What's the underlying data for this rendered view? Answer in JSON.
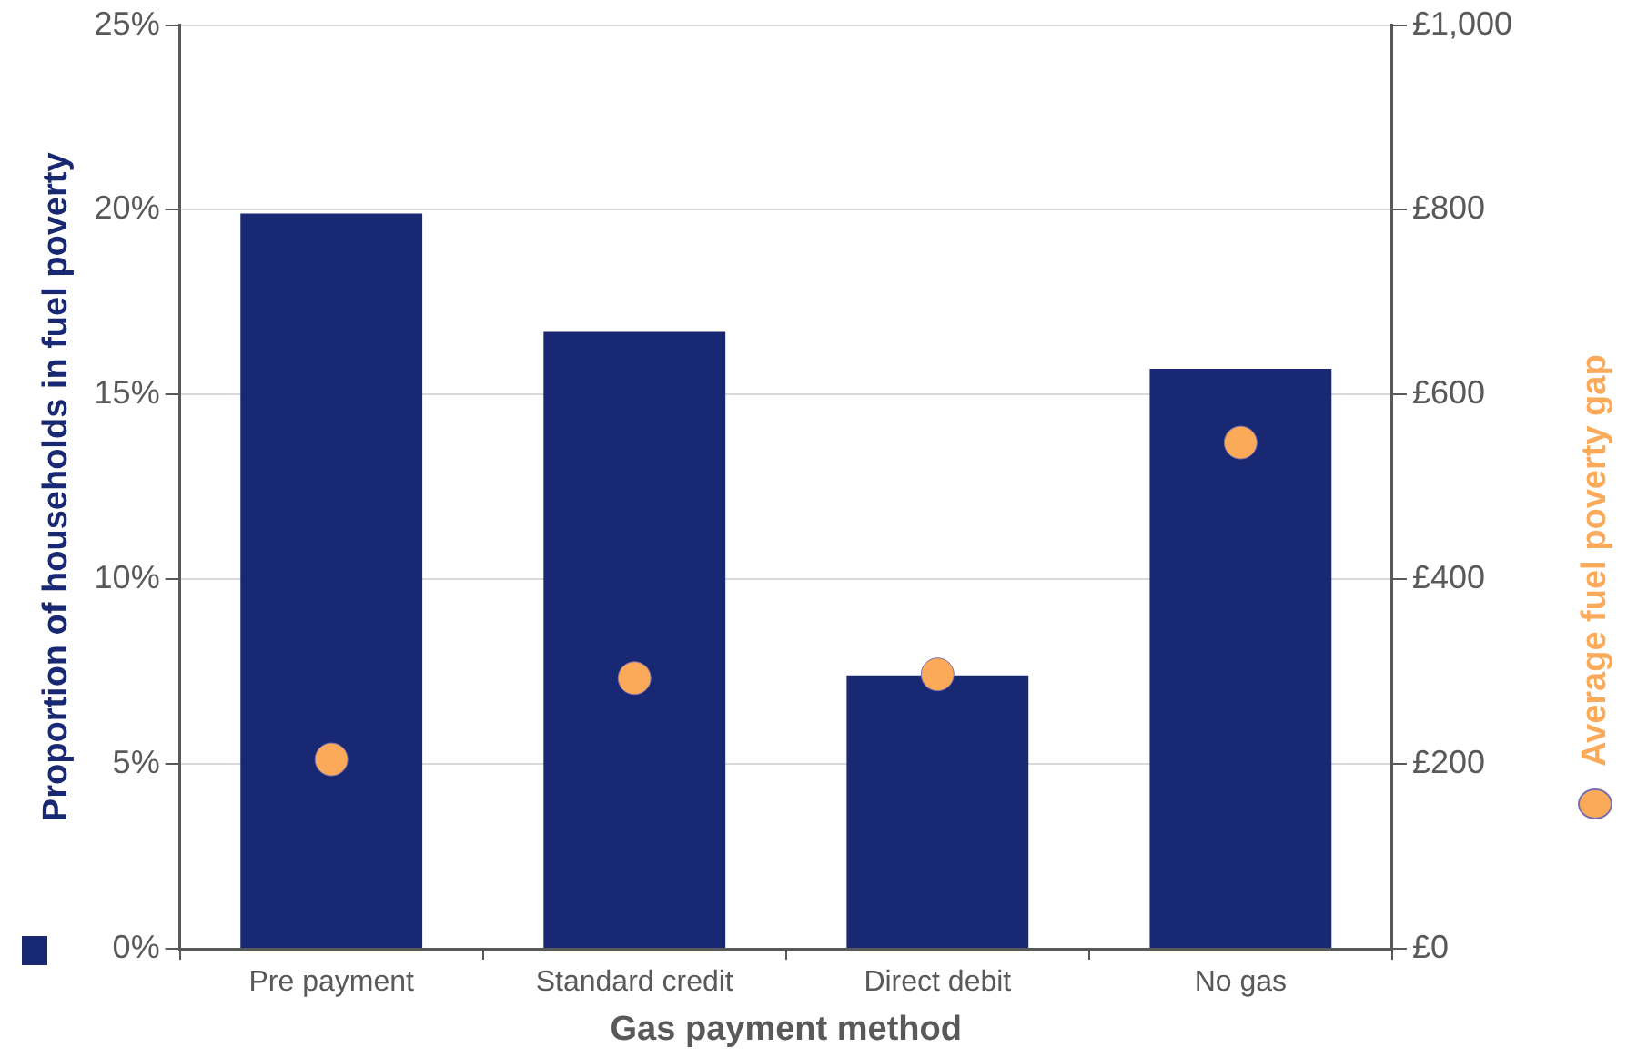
{
  "chart_data": {
    "type": "bar",
    "xlabel": "Gas payment method",
    "ylabel": "Proportion of households in fuel poverty",
    "y2label": "Average fuel poverty gap",
    "categories": [
      "Pre payment",
      "Standard credit",
      "Direct debit",
      "No gas"
    ],
    "series": [
      {
        "color": "#182872",
        "values": [
          19.9,
          16.7,
          7.4,
          15.7
        ]
      },
      {
        "type": "scatter",
        "axis": "y2",
        "color": "#fbaa5a",
        "x": [
          "Pre payment",
          "Standard credit",
          "Direct debit",
          "No gas"
        ],
        "values": [
          205,
          293,
          297,
          548
        ]
      }
    ],
    "ylim": [
      0,
      25
    ],
    "yticks": [
      {
        "value": 0,
        "label": "0%"
      },
      {
        "value": 5,
        "label": "5%"
      },
      {
        "value": 10,
        "label": "10%"
      },
      {
        "value": 15,
        "label": "15%"
      },
      {
        "value": 20,
        "label": "20%"
      },
      {
        "value": 25,
        "label": "25%"
      }
    ],
    "y2lim": [
      0,
      1000
    ],
    "y2ticks": [
      {
        "value": 0,
        "label": "£0"
      },
      {
        "value": 200,
        "label": "£200"
      },
      {
        "value": 400,
        "label": "£400"
      },
      {
        "value": 600,
        "label": "£600"
      },
      {
        "value": 800,
        "label": "£800"
      },
      {
        "value": 1000,
        "label": "£1,000"
      }
    ],
    "grid": "y",
    "marker": "circle",
    "legend": false
  }
}
